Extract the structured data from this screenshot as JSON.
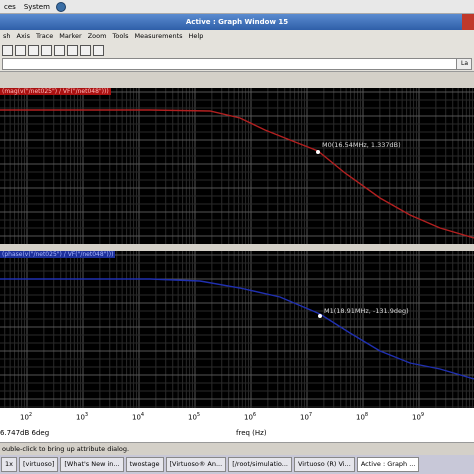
{
  "top_menu": {
    "items": [
      "ces",
      "System"
    ]
  },
  "window": {
    "title": "Active : Graph Window 15"
  },
  "menu": {
    "items": [
      "sh",
      "Axis",
      "Trace",
      "Marker",
      "Zoom",
      "Tools",
      "Measurements",
      "Help"
    ]
  },
  "toolbar": {
    "lab_label": "La"
  },
  "plot1": {
    "trace_title": "(mag(v(\"/net025\") / VF(\"/net048\")))",
    "marker_label": "M0(16.54MHz, 1.337dB)",
    "color": "#b22020"
  },
  "plot2": {
    "trace_title": "(phase(v(\"/net025\") / VF(\"/net048\")))",
    "marker_label": "M1(18.91MHz, -131.9deg)",
    "color": "#2030b0"
  },
  "xaxis": {
    "ticks": [
      {
        "base": "10",
        "exp": "2"
      },
      {
        "base": "10",
        "exp": "3"
      },
      {
        "base": "10",
        "exp": "4"
      },
      {
        "base": "10",
        "exp": "5"
      },
      {
        "base": "10",
        "exp": "6"
      },
      {
        "base": "10",
        "exp": "7"
      },
      {
        "base": "10",
        "exp": "8"
      },
      {
        "base": "10",
        "exp": "9"
      }
    ],
    "label": "freq (Hz)",
    "readout": "6.747dB 6deg"
  },
  "status": {
    "text": "ouble-click to bring up attribute dialog."
  },
  "taskbar": {
    "items": [
      {
        "label": "1x"
      },
      {
        "label": "[virtuoso]"
      },
      {
        "label": "[What's New in..."
      },
      {
        "label": "twostage"
      },
      {
        "label": "[Virtuoso® An..."
      },
      {
        "label": "[/root/simulatio..."
      },
      {
        "label": "Virtuoso (R) Vi..."
      },
      {
        "label": "Active : Graph ..."
      }
    ]
  }
}
